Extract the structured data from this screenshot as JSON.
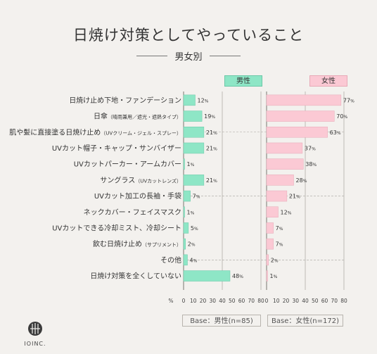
{
  "title": "日焼け対策としてやっていること",
  "subtitle": "男女別",
  "legend": {
    "male": "男性",
    "female": "女性"
  },
  "base": {
    "male": "Base：男性(n=85)",
    "female": "Base：女性(n=172)"
  },
  "logo_text": "IOINC.",
  "colors": {
    "male": "#8ee6c6",
    "female": "#fbc9d4",
    "grid": "#9c9892",
    "axis": "#7a7670"
  },
  "chart_data": {
    "type": "bar",
    "orientation": "horizontal",
    "categories": [
      "日焼け止め下地・ファンデーション",
      "日傘（晴雨兼用／遮光・遮熱タイプ）",
      "肌や髪に直接塗る日焼け止め（UVクリーム・ジェル・スプレー）",
      "UVカット帽子・キャップ・サンバイザー",
      "UVカットパーカー・アームカバー",
      "サングラス（UVカットレンズ）",
      "UVカット加工の長袖・手袋",
      "ネックカバー・フェイスマスク",
      "UVカットできる冷却ミスト、冷却シート",
      "飲む日焼け止め（サプリメント）",
      "その他",
      "日焼け対策を全くしていない"
    ],
    "category_labels": [
      {
        "main": "日焼け止め下地・ファンデーション",
        "small": ""
      },
      {
        "main": "日傘",
        "small": "（晴雨兼用／遮光・遮熱タイプ）"
      },
      {
        "main": "肌や髪に直接塗る日焼け止め",
        "small": "（UVクリーム・ジェル・スプレー）"
      },
      {
        "main": "UVカット帽子・キャップ・サンバイザー",
        "small": ""
      },
      {
        "main": "UVカットパーカー・アームカバー",
        "small": ""
      },
      {
        "main": "サングラス",
        "small": "（UVカットレンズ）"
      },
      {
        "main": "UVカット加工の長袖・手袋",
        "small": ""
      },
      {
        "main": "ネックカバー・フェイスマスク",
        "small": ""
      },
      {
        "main": "UVカットできる冷却ミスト、冷却シート",
        "small": ""
      },
      {
        "main": "飲む日焼け止め",
        "small": "（サプリメント）"
      },
      {
        "main": "その他",
        "small": ""
      },
      {
        "main": "日焼け対策を全くしていない",
        "small": ""
      }
    ],
    "series": [
      {
        "name": "男性",
        "values": [
          12,
          19,
          21,
          21,
          1,
          21,
          7,
          1,
          5,
          2,
          4,
          48
        ]
      },
      {
        "name": "女性",
        "values": [
          77,
          70,
          63,
          37,
          38,
          28,
          21,
          12,
          7,
          7,
          2,
          1
        ]
      }
    ],
    "value_suffix": "%",
    "xlim": [
      0,
      80
    ],
    "xticks": [
      "0",
      "10",
      "20",
      "30",
      "40",
      "50",
      "60",
      "70",
      "80"
    ],
    "x_unit_label": "%",
    "gridlines_at": [
      40,
      80
    ],
    "dashed_rows": [
      2,
      6,
      10
    ]
  }
}
